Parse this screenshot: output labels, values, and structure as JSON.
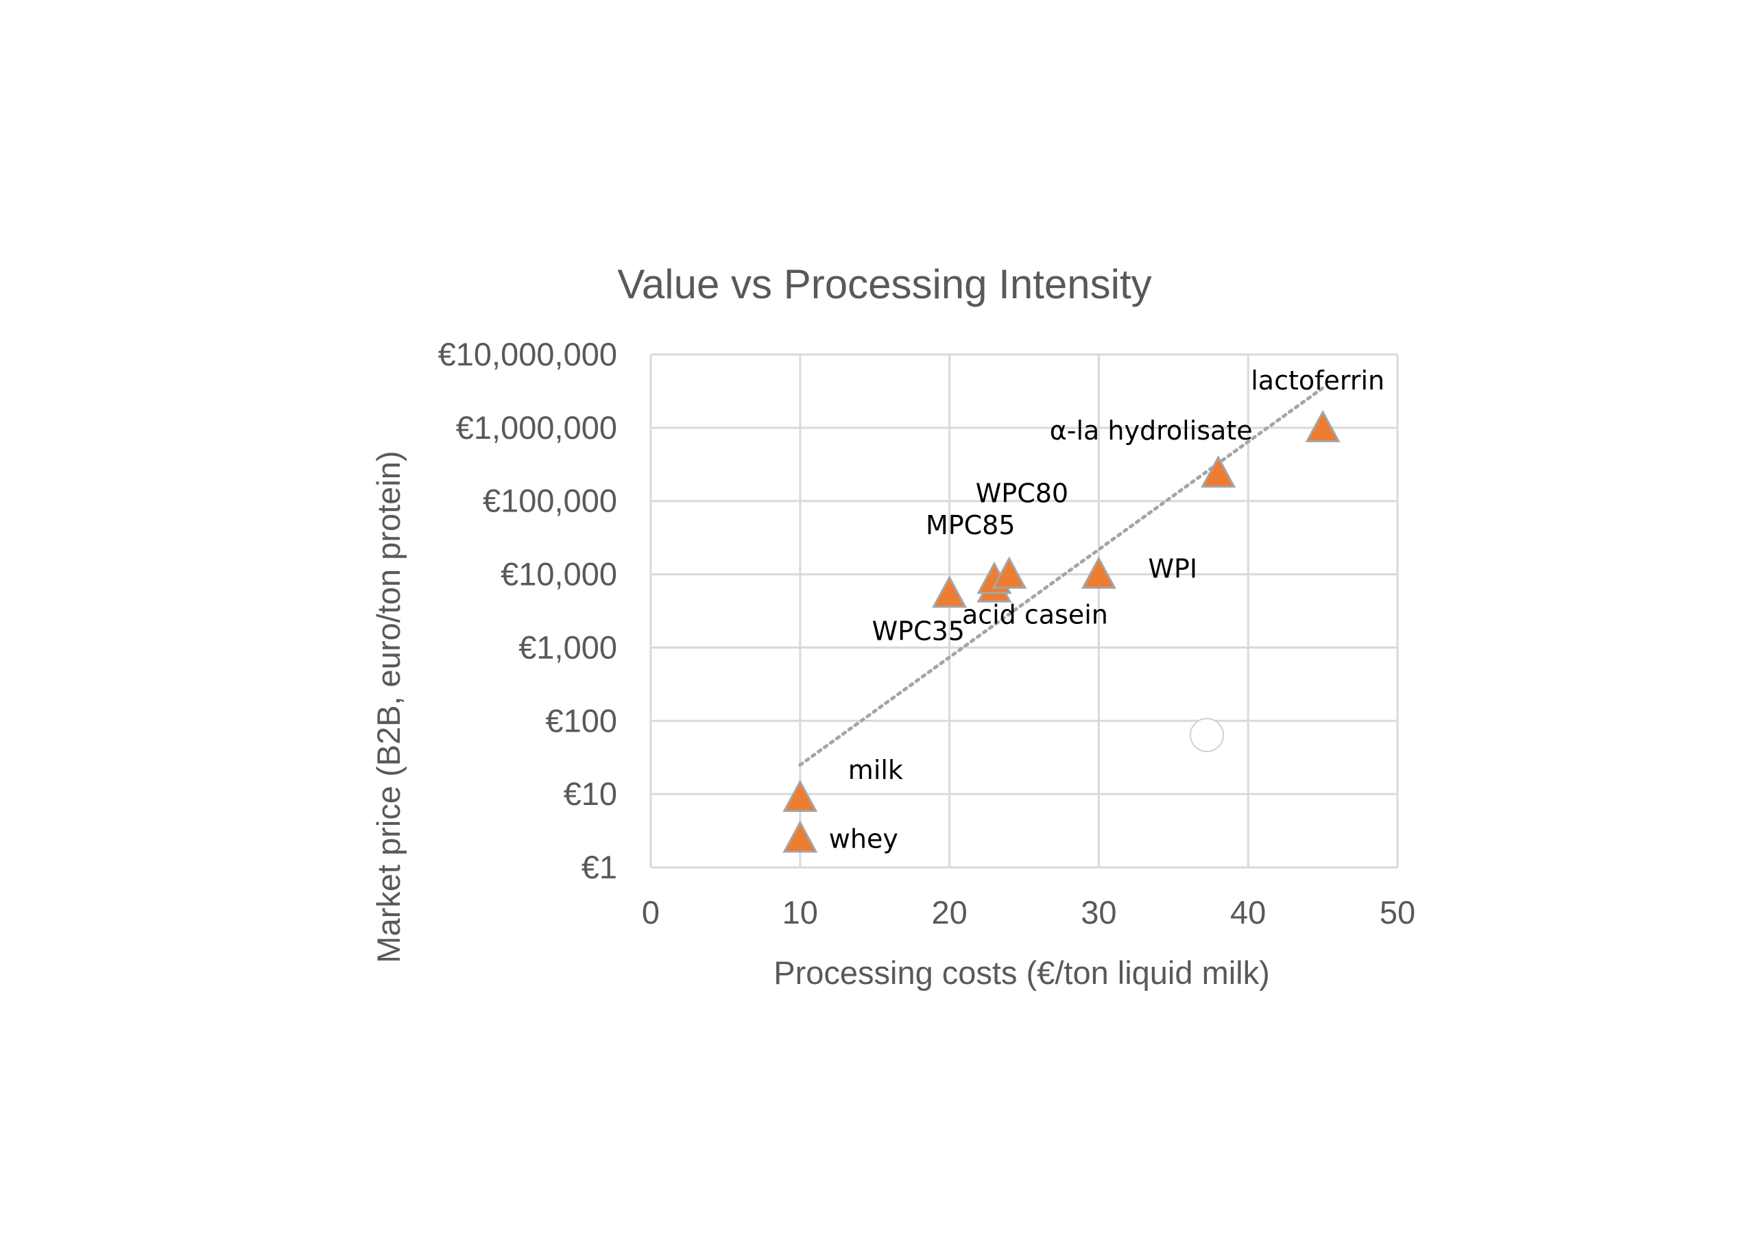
{
  "chart_data": {
    "type": "scatter",
    "title": "Value vs Processing Intensity",
    "xlabel": "Processing costs (€/ton liquid milk)",
    "ylabel": "Market price (B2B, euro/ton protein)",
    "xlim": [
      0,
      50
    ],
    "ylim": [
      1,
      10000000
    ],
    "y_scale": "log10",
    "x_ticks": [
      "0",
      "10",
      "20",
      "30",
      "40",
      "50"
    ],
    "y_ticks": [
      "€1",
      "€10",
      "€100",
      "€1,000",
      "€10,000",
      "€100,000",
      "€1,000,000",
      "€10,000,000"
    ],
    "grid": true,
    "legend": "none",
    "marker": "triangle",
    "marker_color": "#ed7d31",
    "points": [
      {
        "label": "whey",
        "x": 10,
        "y": 2.5
      },
      {
        "label": "milk",
        "x": 10,
        "y": 9
      },
      {
        "label": "WPC35",
        "x": 20,
        "y": 5500
      },
      {
        "label": "acid casein",
        "x": 23,
        "y": 6500
      },
      {
        "label": "MPC85",
        "x": 23,
        "y": 8500
      },
      {
        "label": "WPC80",
        "x": 24,
        "y": 10000
      },
      {
        "label": "WPI",
        "x": 30,
        "y": 10000
      },
      {
        "label": "α-la hydrolisate",
        "x": 38,
        "y": 240000
      },
      {
        "label": "lactoferrin",
        "x": 45,
        "y": 1000000
      }
    ],
    "trendline": {
      "type": "exponential",
      "style": "dotted",
      "color": "#a6a6a6",
      "x_range": [
        10,
        45
      ],
      "y_range": [
        25,
        3500000
      ]
    }
  }
}
